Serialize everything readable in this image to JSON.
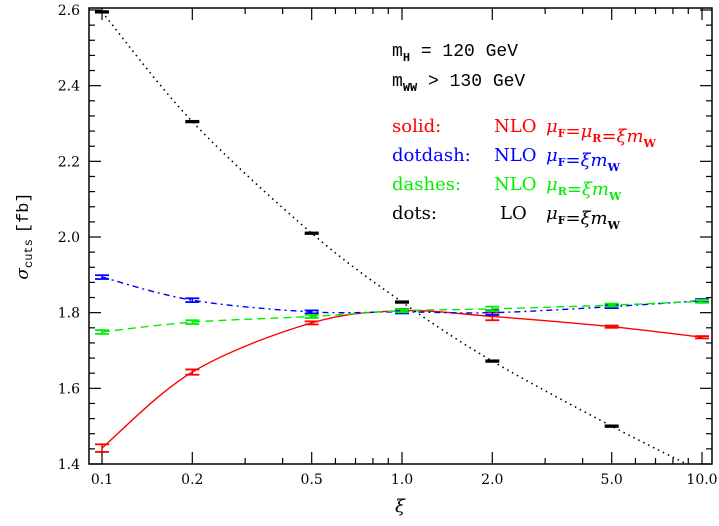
{
  "chart_data": {
    "type": "line",
    "xlabel": "ξ",
    "ylabel": "σ",
    "ylabel_sub": "cuts",
    "ylabel_unit": "[fb]",
    "xscale": "log",
    "xlim": [
      0.09,
      11
    ],
    "ylim": [
      1.4,
      2.6
    ],
    "xticks": [
      0.1,
      0.2,
      0.5,
      1.0,
      2.0,
      5.0,
      10.0
    ],
    "xtick_labels": [
      "0.1",
      "0.2",
      "0.5",
      "1.0",
      "2.0",
      "5.0",
      "10.0"
    ],
    "yticks": [
      1.4,
      1.6,
      1.8,
      2.0,
      2.2,
      2.4,
      2.6
    ],
    "ytick_labels": [
      "1.4",
      "1.6",
      "1.8",
      "2.0",
      "2.2",
      "2.4",
      "2.6"
    ],
    "grid": false,
    "x": [
      0.1,
      0.2,
      0.5,
      1.0,
      2.0,
      5.0,
      10.0
    ],
    "series": [
      {
        "key": "solid",
        "color": "#ff0000",
        "style": "solid",
        "values": [
          1.442,
          1.643,
          1.773,
          1.805,
          1.79,
          1.763,
          1.735
        ],
        "errors": [
          0.01,
          0.007,
          0.004,
          0.005,
          0.01,
          0.003,
          0.003
        ]
      },
      {
        "key": "dotdash",
        "color": "#0000ff",
        "style": "dotdash",
        "values": [
          1.894,
          1.833,
          1.802,
          1.802,
          1.8,
          1.816,
          1.832
        ],
        "errors": [
          0.005,
          0.005,
          0.004,
          0.004,
          0.006,
          0.004,
          0.004
        ]
      },
      {
        "key": "dashes",
        "color": "#00ee00",
        "style": "dashes",
        "values": [
          1.749,
          1.775,
          1.79,
          1.805,
          1.81,
          1.82,
          1.83
        ],
        "errors": [
          0.005,
          0.005,
          0.004,
          0.004,
          0.006,
          0.004,
          0.004
        ]
      },
      {
        "key": "dots",
        "color": "#000000",
        "style": "dots",
        "values": [
          2.595,
          2.305,
          2.01,
          1.828,
          1.672,
          1.5,
          1.38
        ],
        "errors": [
          0.002,
          0.002,
          0.002,
          0.002,
          0.002,
          0.002,
          0.002
        ]
      }
    ],
    "annotations": {
      "line1": {
        "main": "m",
        "sub": "H",
        "rest": " = 120 GeV"
      },
      "line2": {
        "main": "m",
        "sub": "WW",
        "rest": " > 130 GeV"
      }
    },
    "legend": [
      {
        "style": "solid:",
        "order": "NLO",
        "formula": [
          [
            "μ",
            "F"
          ],
          [
            "=μ",
            "R"
          ],
          [
            "=ξm",
            "W"
          ]
        ],
        "color": "#ff0000"
      },
      {
        "style": "dotdash:",
        "order": "NLO",
        "formula": [
          [
            "μ",
            "F"
          ],
          [
            "=ξm",
            "W"
          ]
        ],
        "color": "#0000ff"
      },
      {
        "style": "dashes:",
        "order": "NLO",
        "formula": [
          [
            "μ",
            "R"
          ],
          [
            "=ξm",
            "W"
          ]
        ],
        "color": "#00ee00"
      },
      {
        "style": "dots:",
        "order": "LO",
        "formula": [
          [
            "μ",
            "F"
          ],
          [
            "=ξm",
            "W"
          ]
        ],
        "color": "#000000"
      }
    ],
    "legend_position": "top-right"
  }
}
